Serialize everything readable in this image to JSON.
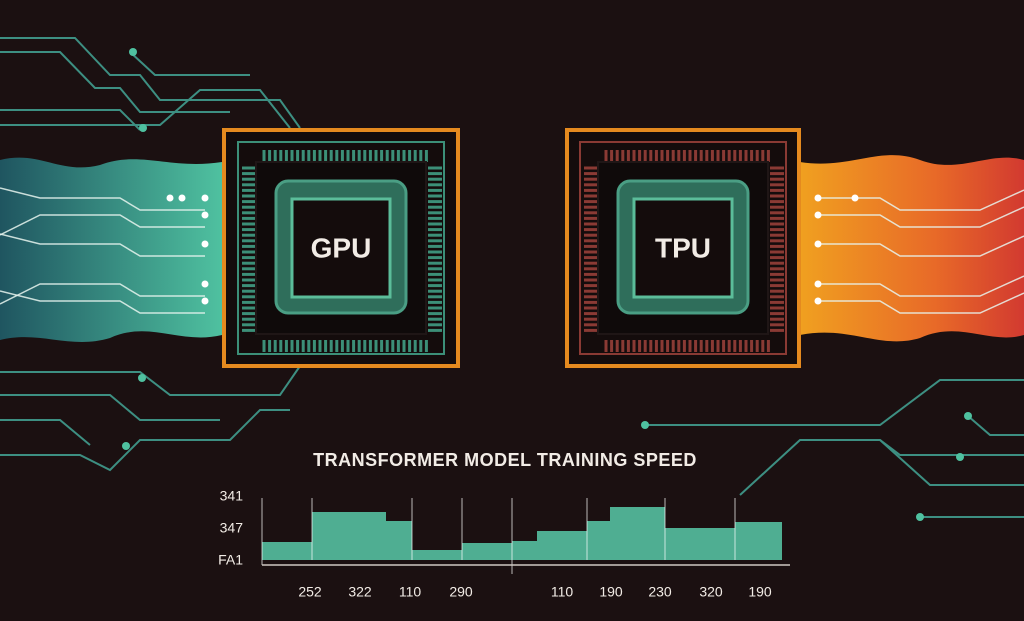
{
  "chips": [
    {
      "label": "GPU"
    },
    {
      "label": "TPU"
    }
  ],
  "chart": {
    "title": "TRANSFORMER MODEL TRAINING SPEED",
    "y_labels": [
      "341",
      "347",
      "FA1"
    ],
    "x_labels": [
      "252",
      "322",
      "110",
      "290",
      "110",
      "190",
      "230",
      "320",
      "190"
    ]
  }
}
